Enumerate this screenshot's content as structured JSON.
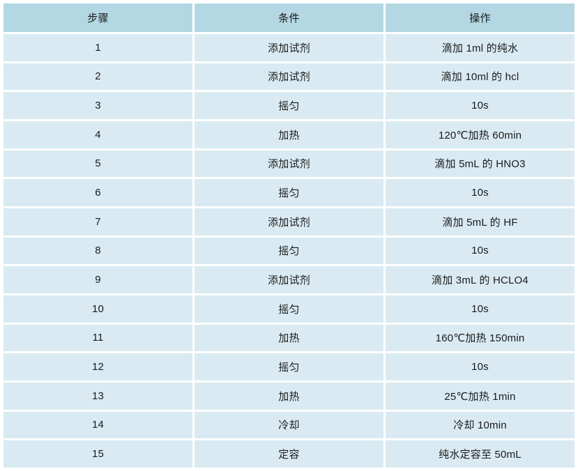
{
  "colors": {
    "header_bg": "#b3d7e3",
    "row_bg": "#d9eaf2",
    "divider": "#ffffff",
    "text": "#1a1a1a"
  },
  "table": {
    "columns": [
      "步骤",
      "条件",
      "操作"
    ],
    "rows": [
      [
        "1",
        "添加试剂",
        "滴加 1ml 的纯水"
      ],
      [
        "2",
        "添加试剂",
        "滴加 10ml 的 hcl"
      ],
      [
        "3",
        "摇匀",
        "10s"
      ],
      [
        "4",
        "加热",
        "120℃加热 60min"
      ],
      [
        "5",
        "添加试剂",
        "滴加 5mL 的 HNO3"
      ],
      [
        "6",
        "摇匀",
        "10s"
      ],
      [
        "7",
        "添加试剂",
        "滴加 5mL 的 HF"
      ],
      [
        "8",
        "摇匀",
        "10s"
      ],
      [
        "9",
        "添加试剂",
        "滴加 3mL 的 HCLO4"
      ],
      [
        "10",
        "摇匀",
        "10s"
      ],
      [
        "11",
        "加热",
        "160℃加热 150min"
      ],
      [
        "12",
        "摇匀",
        "10s"
      ],
      [
        "13",
        "加热",
        "25℃加热 1min"
      ],
      [
        "14",
        "冷却",
        "冷却 10min"
      ],
      [
        "15",
        "定容",
        "纯水定容至 50mL"
      ]
    ]
  }
}
